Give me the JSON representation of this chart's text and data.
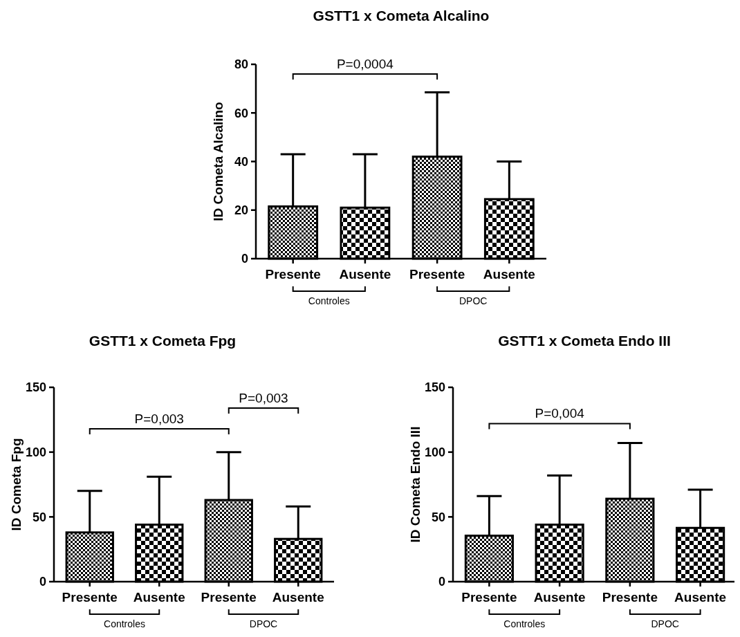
{
  "chart_data": [
    {
      "type": "bar",
      "title": "GSTT1 x Cometa Alcalino",
      "ylabel": "ID Cometa Alcalino",
      "categories": [
        "Presente",
        "Ausente",
        "Presente",
        "Ausente"
      ],
      "values": [
        21.5,
        21,
        42,
        24.5
      ],
      "errors": [
        [
          21.5,
          43
        ],
        [
          21,
          43
        ],
        [
          42,
          68.5
        ],
        [
          24.5,
          40
        ]
      ],
      "colors": [
        "#000000",
        "#000000",
        "#000000",
        "#000000"
      ],
      "ylim": [
        0,
        80
      ],
      "yticks": [
        0,
        20,
        40,
        60,
        80
      ],
      "annotations": [
        "P=0,0004",
        "Controles",
        "DPOC"
      ]
    },
    {
      "type": "bar",
      "title": "GSTT1 x Cometa Fpg",
      "ylabel": "ID Cometa Fpg",
      "categories": [
        "Presente",
        "Ausente",
        "Presente",
        "Ausente"
      ],
      "values": [
        38,
        44,
        63,
        33
      ],
      "errors": [
        [
          38,
          70
        ],
        [
          44,
          81
        ],
        [
          63,
          100
        ],
        [
          33,
          58
        ]
      ],
      "colors": [
        "#000000",
        "#000000",
        "#000000",
        "#000000"
      ],
      "ylim": [
        0,
        150
      ],
      "yticks": [
        0,
        50,
        100,
        150
      ],
      "annotations": [
        "P=0,003",
        "P=0,003",
        "Controles",
        "DPOC"
      ]
    },
    {
      "type": "bar",
      "title": "GSTT1 x Cometa Endo III",
      "ylabel": "ID Cometa Endo III",
      "categories": [
        "Presente",
        "Ausente",
        "Presente",
        "Ausente"
      ],
      "values": [
        35.5,
        44,
        64,
        41.5
      ],
      "errors": [
        [
          35.5,
          66
        ],
        [
          44,
          82
        ],
        [
          64,
          107
        ],
        [
          41.5,
          71
        ]
      ],
      "colors": [
        "#000000",
        "#000000",
        "#000000",
        "#000000"
      ],
      "ylim": [
        0,
        150
      ],
      "yticks": [
        0,
        50,
        100,
        150
      ],
      "annotations": [
        "P=0,004",
        "Controles",
        "DPOC"
      ]
    }
  ]
}
